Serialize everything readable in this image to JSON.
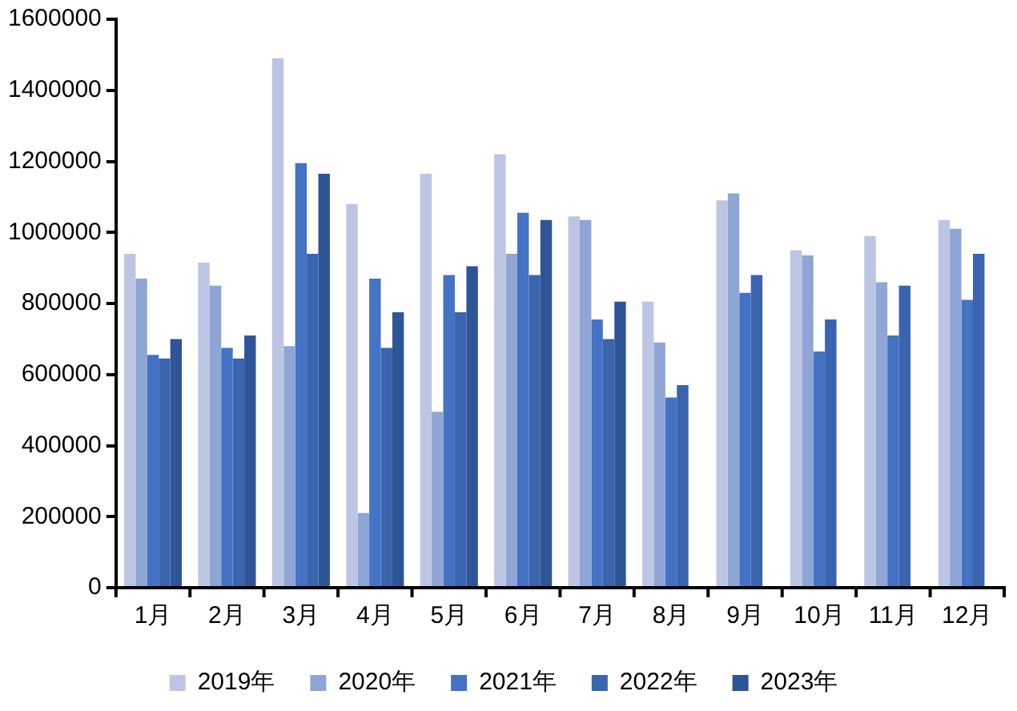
{
  "chart_data": {
    "type": "bar",
    "categories": [
      "1月",
      "2月",
      "3月",
      "4月",
      "5月",
      "6月",
      "7月",
      "8月",
      "9月",
      "10月",
      "11月",
      "12月"
    ],
    "series": [
      {
        "name": "2019年",
        "color": "#bcc6e4",
        "values": [
          940000,
          915000,
          1490000,
          1080000,
          1165000,
          1220000,
          1045000,
          805000,
          1090000,
          950000,
          990000,
          1035000
        ]
      },
      {
        "name": "2020年",
        "color": "#8fa5d6",
        "values": [
          870000,
          850000,
          680000,
          210000,
          495000,
          940000,
          1035000,
          690000,
          1110000,
          935000,
          860000,
          1010000
        ]
      },
      {
        "name": "2021年",
        "color": "#4472c4",
        "values": [
          655000,
          675000,
          1195000,
          870000,
          880000,
          1055000,
          755000,
          535000,
          830000,
          665000,
          710000,
          810000
        ]
      },
      {
        "name": "2022年",
        "color": "#3a64ad",
        "values": [
          645000,
          645000,
          940000,
          675000,
          775000,
          880000,
          700000,
          570000,
          880000,
          755000,
          850000,
          940000
        ]
      },
      {
        "name": "2023年",
        "color": "#2f5597",
        "values": [
          700000,
          710000,
          1165000,
          775000,
          905000,
          1035000,
          805000,
          null,
          null,
          null,
          null,
          null
        ]
      }
    ],
    "ylim": [
      0,
      1600000
    ],
    "yticks": [
      0,
      200000,
      400000,
      600000,
      800000,
      1000000,
      1200000,
      1400000,
      1600000
    ],
    "grid": false,
    "legend": "bottom"
  }
}
